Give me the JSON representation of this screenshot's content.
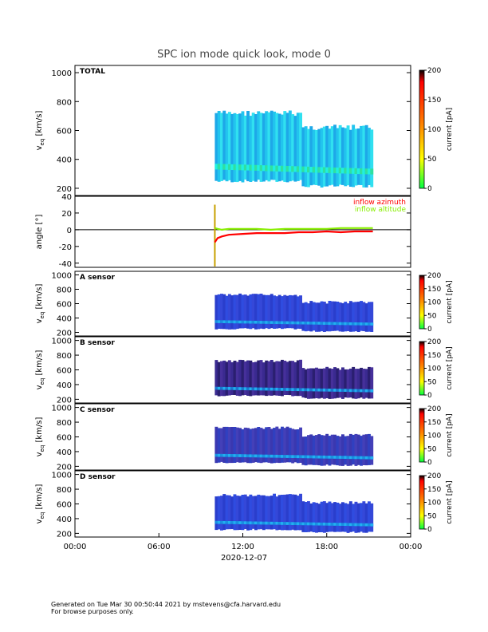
{
  "title": "SPC ion mode quick look, mode 0",
  "footer": {
    "line1": "Generated on Tue Mar 30 00:50:44 2021 by mstevens@cfa.harvard.edu",
    "line2": "For browse purposes only."
  },
  "chart_data": [
    {
      "type": "heatmap",
      "panel_label": "TOTAL",
      "ylabel": "v_eq [km/s]",
      "ylabel_main": "v",
      "ylabel_sub": "eq",
      "ylabel_unit": " [km/s]",
      "ylim": [
        150,
        1050
      ],
      "yticks": [
        200,
        400,
        600,
        800,
        1000
      ],
      "x_range_hours": [
        0,
        24
      ],
      "data_start_hour": 10.0,
      "data_end_hour": 21.3,
      "colorbar": {
        "label": "current [pA]",
        "ticks": [
          0,
          50,
          100,
          150,
          200
        ]
      },
      "core_speed_kms": [
        350,
        345,
        340,
        330,
        310,
        320,
        300,
        310,
        330,
        340
      ],
      "style": "bright"
    },
    {
      "type": "line",
      "ylabel": "angle [°]",
      "ylim": [
        -45,
        40
      ],
      "yticks": [
        -40,
        -20,
        0,
        20,
        40
      ],
      "x_range_hours": [
        0,
        24
      ],
      "series": [
        {
          "name": "inflow azimuth",
          "color": "#ff0000",
          "x": [
            10.0,
            10.2,
            10.5,
            11.0,
            12.0,
            13.0,
            14.0,
            15.0,
            16.0,
            17.0,
            18.0,
            19.0,
            20.0,
            21.0,
            21.3
          ],
          "y": [
            -15,
            -10,
            -8,
            -6,
            -5,
            -4,
            -4,
            -4,
            -3,
            -3,
            -2,
            -3,
            -2,
            -2,
            -2
          ]
        },
        {
          "name": "inflow altitude",
          "color": "#88ee00",
          "x": [
            10.0,
            10.2,
            10.5,
            11.0,
            12.0,
            13.0,
            14.0,
            15.0,
            16.0,
            17.0,
            18.0,
            19.0,
            20.0,
            21.0,
            21.3
          ],
          "y": [
            2,
            1,
            0,
            1,
            1,
            1,
            0,
            1,
            1,
            1,
            1,
            2,
            2,
            2,
            2
          ]
        }
      ]
    },
    {
      "type": "heatmap",
      "panel_label": "A sensor",
      "ylabel": "v_eq [km/s]",
      "ylabel_main": "v",
      "ylabel_sub": "eq",
      "ylabel_unit": " [km/s]",
      "ylim": [
        150,
        1050
      ],
      "yticks": [
        200,
        400,
        600,
        800,
        1000
      ],
      "x_range_hours": [
        0,
        24
      ],
      "colorbar": {
        "label": "current [pA]",
        "ticks": [
          0,
          50,
          100,
          150,
          200
        ]
      },
      "style": "blue"
    },
    {
      "type": "heatmap",
      "panel_label": "B sensor",
      "ylabel": "v_eq [km/s]",
      "ylabel_main": "v",
      "ylabel_sub": "eq",
      "ylabel_unit": " [km/s]",
      "ylim": [
        150,
        1050
      ],
      "yticks": [
        200,
        400,
        600,
        800,
        1000
      ],
      "x_range_hours": [
        0,
        24
      ],
      "colorbar": {
        "label": "current [pA]",
        "ticks": [
          0,
          50,
          100,
          150,
          200
        ]
      },
      "style": "dark"
    },
    {
      "type": "heatmap",
      "panel_label": "C sensor",
      "ylabel": "v_eq [km/s]",
      "ylabel_main": "v",
      "ylabel_sub": "eq",
      "ylabel_unit": " [km/s]",
      "ylim": [
        150,
        1050
      ],
      "yticks": [
        200,
        400,
        600,
        800,
        1000
      ],
      "x_range_hours": [
        0,
        24
      ],
      "colorbar": {
        "label": "current [pA]",
        "ticks": [
          0,
          50,
          100,
          150,
          200
        ]
      },
      "style": "mid"
    },
    {
      "type": "heatmap",
      "panel_label": "D sensor",
      "ylabel": "v_eq [km/s]",
      "ylabel_main": "v",
      "ylabel_sub": "eq",
      "ylabel_unit": " [km/s]",
      "ylim": [
        150,
        1050
      ],
      "yticks": [
        200,
        400,
        600,
        800,
        1000
      ],
      "x_range_hours": [
        0,
        24
      ],
      "colorbar": {
        "label": "current [pA]",
        "ticks": [
          0,
          50,
          100,
          150,
          200
        ]
      },
      "style": "blue"
    }
  ],
  "xaxis": {
    "ticks": [
      "00:00",
      "06:00",
      "12:00",
      "18:00",
      "00:00"
    ],
    "tick_hours": [
      0,
      6,
      12,
      18,
      24
    ],
    "date_label": "2020-12-07"
  },
  "colors": {
    "zero_line": "#000000",
    "colorbar_stops": [
      "#00ff40",
      "#ffff00",
      "#ff8000",
      "#ff0000",
      "#000000"
    ]
  }
}
